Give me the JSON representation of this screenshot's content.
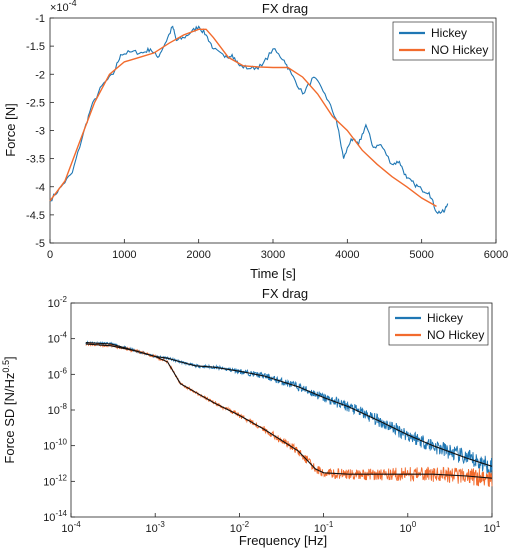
{
  "chart_data": [
    {
      "type": "line",
      "title": "FX drag",
      "xlabel": "Time [s]",
      "ylabel": "Force [N]",
      "y_exponent_label": "×10",
      "y_exponent_value": "-4",
      "xlim": [
        0,
        6000
      ],
      "ylim": [
        -5,
        -1
      ],
      "x_ticks": [
        0,
        1000,
        2000,
        3000,
        4000,
        5000,
        6000
      ],
      "y_ticks": [
        -5,
        -4.5,
        -4,
        -3.5,
        -3,
        -2.5,
        -2,
        -1.5,
        -1
      ],
      "y_tick_labels": [
        "-5",
        "-4.5",
        "-4",
        "-3.5",
        "-3",
        "-2.5",
        "-2",
        "-1.5",
        "-1"
      ],
      "grid": false,
      "legend_position": "top-right",
      "series": [
        {
          "name": "Hickey",
          "color": "#1f77b4",
          "x": [
            0,
            150,
            300,
            450,
            550,
            700,
            850,
            950,
            1100,
            1250,
            1350,
            1450,
            1550,
            1650,
            1700,
            1800,
            1900,
            2000,
            2100,
            2200,
            2350,
            2450,
            2550,
            2700,
            2850,
            3000,
            3150,
            3250,
            3400,
            3550,
            3700,
            3850,
            3950,
            4050,
            4150,
            4250,
            4350,
            4450,
            4600,
            4700,
            4800,
            4900,
            5000,
            5100,
            5200,
            5300,
            5350
          ],
          "y": [
            -4.25,
            -4.0,
            -3.75,
            -3.05,
            -2.6,
            -2.2,
            -2.0,
            -1.65,
            -1.6,
            -1.62,
            -1.55,
            -1.7,
            -1.45,
            -1.15,
            -1.4,
            -1.35,
            -1.25,
            -1.15,
            -1.3,
            -1.55,
            -1.7,
            -1.65,
            -1.85,
            -1.9,
            -1.85,
            -1.55,
            -1.75,
            -2.0,
            -2.35,
            -2.05,
            -2.35,
            -2.8,
            -3.5,
            -3.15,
            -3.25,
            -2.9,
            -3.3,
            -3.25,
            -3.6,
            -3.55,
            -3.85,
            -3.95,
            -4.05,
            -4.1,
            -4.45,
            -4.45,
            -4.3
          ]
        },
        {
          "name": "NO Hickey",
          "color": "#f26b2d",
          "x": [
            0,
            200,
            400,
            600,
            800,
            1000,
            1200,
            1400,
            1600,
            1800,
            2000,
            2100,
            2200,
            2400,
            2600,
            2800,
            3000,
            3200,
            3400,
            3600,
            3800,
            4000,
            4200,
            4400,
            4600,
            4800,
            5000,
            5200
          ],
          "y": [
            -4.25,
            -3.9,
            -3.2,
            -2.5,
            -2.0,
            -1.78,
            -1.7,
            -1.62,
            -1.45,
            -1.3,
            -1.2,
            -1.2,
            -1.35,
            -1.7,
            -1.85,
            -1.87,
            -1.88,
            -1.88,
            -2.05,
            -2.35,
            -2.75,
            -3.0,
            -3.35,
            -3.6,
            -3.82,
            -4.0,
            -4.2,
            -4.35
          ]
        }
      ]
    },
    {
      "type": "line",
      "title": "FX drag",
      "xlabel": "Frequency  [Hz]",
      "ylabel": "Force SD  [N/Hz",
      "ylabel_sup": "0.5",
      "ylabel_close": "]",
      "x_scale": "log",
      "y_scale": "log",
      "xlim": [
        0.0001,
        10
      ],
      "ylim": [
        1e-14,
        0.01
      ],
      "x_tick_labels": [
        "10",
        "10",
        "10",
        "10",
        "10",
        "10"
      ],
      "x_tick_sups": [
        "-4",
        "-3",
        "-2",
        "-1",
        "0",
        "1"
      ],
      "x_tick_values": [
        0.0001,
        0.001,
        0.01,
        0.1,
        1,
        10
      ],
      "y_tick_labels": [
        "10",
        "10",
        "10",
        "10",
        "10",
        "10",
        "10"
      ],
      "y_tick_sups": [
        "-14",
        "-12",
        "-10",
        "-8",
        "-6",
        "-4",
        "-2"
      ],
      "y_tick_values": [
        1e-14,
        1e-12,
        1e-10,
        1e-08,
        1e-06,
        0.0001,
        0.01
      ],
      "grid": false,
      "legend_position": "top-right",
      "series": [
        {
          "name": "Hickey",
          "color": "#1f77b4",
          "x": [
            0.00015,
            0.0003,
            0.0006,
            0.001,
            0.0014,
            0.002,
            0.003,
            0.005,
            0.01,
            0.02,
            0.05,
            0.1,
            0.2,
            0.5,
            1,
            2,
            5,
            10
          ],
          "y": [
            6e-05,
            5e-05,
            2e-05,
            1e-05,
            8e-06,
            5e-06,
            3e-06,
            2.5e-06,
            1.5e-06,
            8e-07,
            2e-07,
            5e-08,
            1.5e-08,
            2e-09,
            4e-10,
            1e-10,
            2e-11,
            7e-12
          ]
        },
        {
          "name": "NO Hickey",
          "color": "#f26b2d",
          "x": [
            0.00015,
            0.0003,
            0.0006,
            0.001,
            0.0014,
            0.002,
            0.003,
            0.005,
            0.01,
            0.02,
            0.05,
            0.08,
            0.1,
            0.2,
            0.5,
            1,
            2,
            5,
            10
          ],
          "y": [
            5e-05,
            4e-05,
            2e-05,
            1e-05,
            5e-06,
            3e-07,
            1e-07,
            2.5e-08,
            5e-09,
            8e-10,
            5e-11,
            5e-12,
            3e-12,
            2.5e-12,
            2.5e-12,
            2.5e-12,
            2.5e-12,
            2e-12,
            1.5e-12
          ]
        }
      ]
    }
  ]
}
